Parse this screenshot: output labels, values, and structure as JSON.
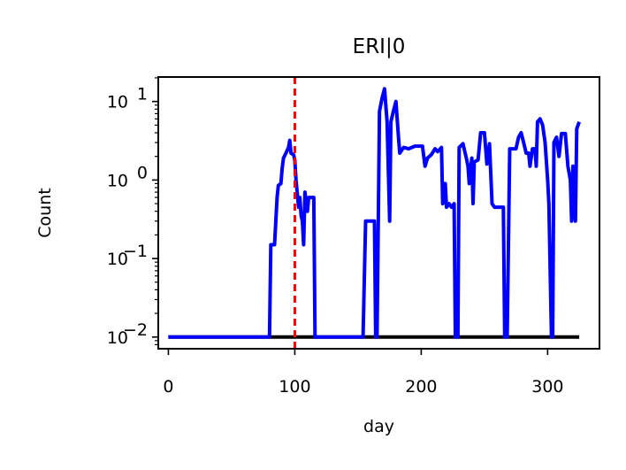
{
  "chart_data": {
    "type": "line",
    "title": "ERI|0",
    "xlabel": "day",
    "ylabel": "Count",
    "yscale": "log",
    "xlim": [
      -8,
      341
    ],
    "ylim": [
      0.0071,
      20.5
    ],
    "xticks": [
      0,
      100,
      200,
      300
    ],
    "yticks": [
      {
        "value": 0.01,
        "base": "10",
        "exp": "−2"
      },
      {
        "value": 0.1,
        "base": "10",
        "exp": "−1"
      },
      {
        "value": 1,
        "base": "10",
        "exp": "0"
      },
      {
        "value": 10,
        "base": "10",
        "exp": "1"
      }
    ],
    "grid": false,
    "vline": {
      "x": 100,
      "color": "#ff0000",
      "style": "dashed"
    },
    "series": [
      {
        "color": "#000000",
        "points": [
          [
            0,
            0.01
          ],
          [
            325,
            0.01
          ]
        ]
      },
      {
        "color": "#0000ff",
        "points": [
          [
            0,
            0.01
          ],
          [
            80,
            0.01
          ],
          [
            81,
            0.15
          ],
          [
            84,
            0.15
          ],
          [
            86,
            0.6
          ],
          [
            87,
            0.85
          ],
          [
            89,
            0.9
          ],
          [
            90,
            1.4
          ],
          [
            91,
            1.9
          ],
          [
            93,
            2.2
          ],
          [
            95,
            2.6
          ],
          [
            96,
            3.2
          ],
          [
            97,
            2.2
          ],
          [
            99,
            2.1
          ],
          [
            100,
            1.8
          ],
          [
            101,
            1.0
          ],
          [
            103,
            0.45
          ],
          [
            104,
            0.6
          ],
          [
            105,
            0.35
          ],
          [
            106,
            0.3
          ],
          [
            107,
            0.15
          ],
          [
            108,
            0.7
          ],
          [
            109,
            0.5
          ],
          [
            110,
            0.4
          ],
          [
            111,
            0.6
          ],
          [
            115,
            0.6
          ],
          [
            116,
            0.01
          ],
          [
            154,
            0.01
          ],
          [
            156,
            0.3
          ],
          [
            163,
            0.3
          ],
          [
            164,
            0.01
          ],
          [
            165,
            0.01
          ],
          [
            167,
            7.5
          ],
          [
            169,
            11
          ],
          [
            171,
            14.5
          ],
          [
            173,
            5.5
          ],
          [
            175,
            0.3
          ],
          [
            176,
            5.5
          ],
          [
            178,
            7.5
          ],
          [
            180,
            10
          ],
          [
            182,
            3.5
          ],
          [
            183,
            2.2
          ],
          [
            186,
            2.6
          ],
          [
            190,
            2.5
          ],
          [
            195,
            2.7
          ],
          [
            201,
            2.7
          ],
          [
            203,
            1.5
          ],
          [
            205,
            1.9
          ],
          [
            208,
            2.1
          ],
          [
            211,
            2.5
          ],
          [
            213,
            2.3
          ],
          [
            216,
            2.6
          ],
          [
            217,
            0.5
          ],
          [
            219,
            0.9
          ],
          [
            220,
            0.45
          ],
          [
            222,
            0.5
          ],
          [
            224,
            0.45
          ],
          [
            226,
            0.5
          ],
          [
            227,
            0.01
          ],
          [
            229,
            0.01
          ],
          [
            230,
            2.6
          ],
          [
            233,
            2.9
          ],
          [
            236,
            1.8
          ],
          [
            237,
            1.5
          ],
          [
            238,
            0.9
          ],
          [
            240,
            1.9
          ],
          [
            241,
            0.5
          ],
          [
            242,
            1.7
          ],
          [
            245,
            1.8
          ],
          [
            247,
            4.0
          ],
          [
            250,
            4.0
          ],
          [
            252,
            1.6
          ],
          [
            254,
            2.9
          ],
          [
            256,
            0.5
          ],
          [
            258,
            0.45
          ],
          [
            265,
            0.45
          ],
          [
            266,
            0.01
          ],
          [
            268,
            0.01
          ],
          [
            270,
            2.5
          ],
          [
            275,
            2.5
          ],
          [
            277,
            3.5
          ],
          [
            279,
            4.0
          ],
          [
            281,
            3.0
          ],
          [
            283,
            2.2
          ],
          [
            285,
            2.2
          ],
          [
            286,
            1.5
          ],
          [
            288,
            2.5
          ],
          [
            290,
            2.5
          ],
          [
            291,
            1.5
          ],
          [
            292,
            5.5
          ],
          [
            294,
            6.0
          ],
          [
            296,
            5.0
          ],
          [
            298,
            3.0
          ],
          [
            300,
            1.0
          ],
          [
            301,
            0.5
          ],
          [
            303,
            0.01
          ],
          [
            304,
            0.01
          ],
          [
            305,
            3.0
          ],
          [
            307,
            3.5
          ],
          [
            309,
            2.0
          ],
          [
            311,
            3.9
          ],
          [
            314,
            3.9
          ],
          [
            316,
            1.5
          ],
          [
            318,
            1.0
          ],
          [
            319,
            0.3
          ],
          [
            320,
            1.5
          ],
          [
            321,
            0.5
          ],
          [
            322,
            0.3
          ],
          [
            323,
            4.5
          ],
          [
            325,
            5.5
          ]
        ]
      }
    ]
  }
}
